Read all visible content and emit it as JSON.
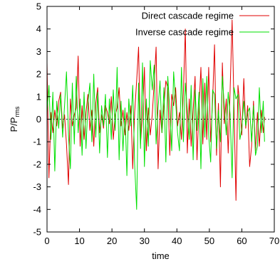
{
  "chart_data": {
    "type": "line",
    "xlabel": "time",
    "ylabel_main": "P/P",
    "ylabel_sub": "rms",
    "xlim": [
      0,
      70
    ],
    "ylim": [
      -5,
      5
    ],
    "xticks": [
      "0",
      "10",
      "20",
      "30",
      "40",
      "50",
      "60",
      "70"
    ],
    "yticks": [
      "-5",
      "-4",
      "-3",
      "-2",
      "-1",
      "0",
      "1",
      "2",
      "3",
      "4",
      "5"
    ],
    "grid": false,
    "zero_line": true,
    "legend_position": "top-right",
    "series": [
      {
        "name": "Direct cascade regime",
        "color": "#e00000",
        "x": [
          0,
          0.6,
          1.2,
          1.8,
          2.4,
          3,
          3.6,
          4.2,
          4.8,
          5.4,
          6,
          6.6,
          7.2,
          7.8,
          8.4,
          9,
          9.6,
          10.2,
          10.8,
          11.4,
          12,
          12.6,
          13.2,
          13.8,
          14.4,
          15,
          15.6,
          16.2,
          16.8,
          17.4,
          18,
          18.6,
          19.2,
          19.8,
          20.4,
          21,
          21.6,
          22.2,
          22.8,
          23.4,
          24,
          24.6,
          25.2,
          25.8,
          26.4,
          27,
          27.6,
          28.2,
          28.8,
          29.4,
          30,
          30.6,
          31.2,
          31.8,
          32.4,
          33,
          33.6,
          34.2,
          34.8,
          35.4,
          36,
          36.6,
          37.2,
          37.8,
          38.4,
          39,
          39.6,
          40.2,
          40.8,
          41.4,
          42,
          42.6,
          43.2,
          43.8,
          44.4,
          45,
          45.6,
          46.2,
          46.8,
          47.4,
          48,
          48.6,
          49.2,
          49.8,
          50.4,
          51,
          51.6,
          52.2,
          52.8,
          53.4,
          54,
          54.6,
          55.2,
          55.8,
          56.4,
          57,
          57.6,
          58.2,
          58.8,
          59.4,
          60,
          60.6,
          61.2,
          61.8,
          62.4,
          63,
          63.6,
          64.2,
          64.8,
          65.4,
          66,
          66.6,
          67
        ],
        "values": [
          2.5,
          -2.6,
          0.3,
          -0.6,
          0.4,
          -0.3,
          0.8,
          1.2,
          -0.4,
          0.2,
          -1.1,
          -2.9,
          0.9,
          -0.3,
          0.2,
          0.5,
          2.8,
          -1.2,
          0.6,
          -0.9,
          0.3,
          1.1,
          -0.5,
          0.4,
          -1.2,
          0.7,
          1.4,
          -0.6,
          0.2,
          -0.4,
          0.6,
          0.3,
          -0.2,
          1.0,
          -0.9,
          0.2,
          0.5,
          1.4,
          -0.3,
          0.4,
          -0.7,
          0.3,
          -0.5,
          0.6,
          -2.2,
          0.3,
          1.7,
          3.2,
          -1.1,
          0.2,
          2.3,
          -1.4,
          0.5,
          -0.7,
          0.2,
          1.6,
          3.2,
          -2.2,
          0.4,
          -0.6,
          0.6,
          1.7,
          1.4,
          -1.6,
          1.1,
          0.6,
          1.4,
          -0.3,
          0.3,
          -0.9,
          1.2,
          4.0,
          -1.5,
          0.9,
          -1.2,
          0.4,
          1.9,
          -1.8,
          0.5,
          2.3,
          -1.1,
          1.6,
          -0.9,
          2.3,
          -1.0,
          0.8,
          3.3,
          -1.6,
          0.7,
          -3.0,
          2.5,
          -0.2,
          0.9,
          -1.5,
          1.3,
          4.4,
          0.5,
          -3.6,
          1.5,
          0.6,
          -0.7,
          1.8,
          -0.4,
          0.6,
          -2.1,
          -1.2,
          0.8,
          -1.4,
          0.3,
          -1.2,
          0.4,
          -0.6,
          0.1
        ]
      },
      {
        "name": "Inverse cascade regime",
        "color": "#00e000",
        "x": [
          0,
          0.6,
          1.2,
          1.8,
          2.4,
          3,
          3.6,
          4.2,
          4.8,
          5.4,
          6,
          6.6,
          7.2,
          7.8,
          8.4,
          9,
          9.6,
          10.2,
          10.8,
          11.4,
          12,
          12.6,
          13.2,
          13.8,
          14.4,
          15,
          15.6,
          16.2,
          16.8,
          17.4,
          18,
          18.6,
          19.2,
          19.8,
          20.4,
          21,
          21.6,
          22.2,
          22.8,
          23.4,
          24,
          24.6,
          25.2,
          25.8,
          26.4,
          27,
          27.6,
          28.2,
          28.8,
          29.4,
          30,
          30.6,
          31.2,
          31.8,
          32.4,
          33,
          33.6,
          34.2,
          34.8,
          35.4,
          36,
          36.6,
          37.2,
          37.8,
          38.4,
          39,
          39.6,
          40.2,
          40.8,
          41.4,
          42,
          42.6,
          43.2,
          43.8,
          44.4,
          45,
          45.6,
          46.2,
          46.8,
          47.4,
          48,
          48.6,
          49.2,
          49.8,
          50.4,
          51,
          51.6,
          52.2,
          52.8,
          53.4,
          54,
          54.6,
          55.2,
          55.8,
          56.4,
          57,
          57.6,
          58.2,
          58.8,
          59.4,
          60,
          60.6,
          61.2,
          61.8,
          62.4,
          63,
          63.6,
          64.2,
          64.8,
          65.4,
          66,
          66.6,
          67
        ],
        "values": [
          0.3,
          1.5,
          -0.9,
          1.2,
          -2.3,
          0.8,
          -0.4,
          1.1,
          -0.8,
          0.6,
          2.1,
          -0.7,
          -2.2,
          1.6,
          -1.1,
          1.9,
          -0.6,
          0.9,
          -1.6,
          1.2,
          -1.3,
          0.7,
          1.6,
          -1.0,
          2.0,
          -0.8,
          1.2,
          -1.5,
          0.6,
          -0.3,
          1.1,
          -1.7,
          0.9,
          -0.9,
          1.3,
          -0.5,
          2.3,
          -1.8,
          0.8,
          -1.4,
          0.5,
          -2.5,
          0.9,
          -0.3,
          1.5,
          -2.0,
          -4.0,
          1.6,
          -1.3,
          2.5,
          -2.1,
          0.9,
          -1.2,
          2.6,
          1.3,
          2.4,
          -1.1,
          0.5,
          1.7,
          -0.6,
          1.4,
          -1.9,
          1.9,
          0.4,
          -1.4,
          2.1,
          0.8,
          -0.6,
          -1.4,
          2.3,
          -1.0,
          1.6,
          0.4,
          -0.9,
          1.5,
          -1.8,
          1.3,
          -0.5,
          1.2,
          -2.2,
          1.8,
          -0.8,
          1.9,
          -0.7,
          -1.9,
          1.3,
          1.1,
          -1.3,
          0.4,
          -1.0,
          1.9,
          0.6,
          -0.7,
          1.2,
          0.2,
          -2.6,
          1.4,
          0.9,
          1.1,
          -0.9,
          -0.4,
          0.8,
          -0.3,
          0.3,
          0.5,
          -1.0,
          0.6,
          -1.6,
          -1.2,
          1.4,
          -0.6,
          0.8,
          -1.0
        ]
      }
    ]
  }
}
